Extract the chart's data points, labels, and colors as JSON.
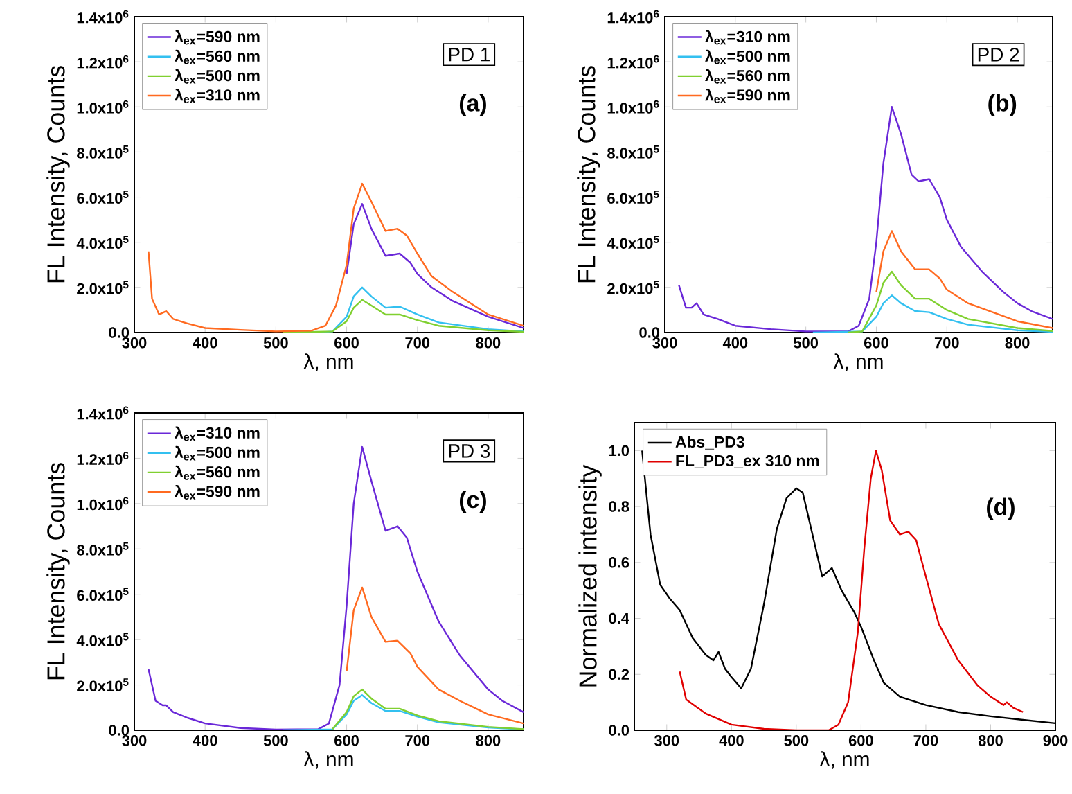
{
  "chart_data": [
    {
      "type": "line",
      "xlabel": "λ, nm",
      "ylabel": "FL Intensity, Counts",
      "xlim": [
        300,
        850
      ],
      "ylim": [
        0,
        1400000
      ],
      "xticks": [
        300,
        400,
        500,
        600,
        700,
        800
      ],
      "yticks": [
        {
          "value": 0,
          "label": "0.0"
        },
        {
          "value": 200000,
          "label": "2.0x10$^{5}$"
        },
        {
          "value": 400000,
          "label": "4.0x10$^{5}$"
        },
        {
          "value": 600000,
          "label": "6.0x10$^{5}$"
        },
        {
          "value": 800000,
          "label": "8.0x10$^{5}$"
        },
        {
          "value": 1000000,
          "label": "1.0x10$^{6}$"
        },
        {
          "value": 1200000,
          "label": "1.2x10$^{6}$"
        },
        {
          "value": 1400000,
          "label": "1.4x10$^{6}$"
        }
      ],
      "legend": "top left",
      "marker": "none",
      "line_style": "solid",
      "annotations": [
        "PD 1",
        "(a)"
      ],
      "series": [
        {
          "name": "λ$_{ex}$=590 nm",
          "color": "#6a28d8",
          "x": [
            600,
            610,
            622,
            635,
            655,
            675,
            690,
            700,
            720,
            750,
            800,
            850
          ],
          "values": [
            260000,
            480000,
            570000,
            460000,
            340000,
            350000,
            310000,
            260000,
            200000,
            140000,
            70000,
            20000
          ]
        },
        {
          "name": "λ$_{ex}$=560 nm",
          "color": "#33c0f0",
          "x": [
            510,
            560,
            580,
            600,
            610,
            622,
            635,
            655,
            675,
            700,
            730,
            800,
            850
          ],
          "values": [
            0,
            0,
            5000,
            70000,
            160000,
            200000,
            160000,
            110000,
            115000,
            80000,
            45000,
            15000,
            5000
          ]
        },
        {
          "name": "λ$_{ex}$=500 nm",
          "color": "#80d030",
          "x": [
            510,
            580,
            600,
            610,
            622,
            635,
            655,
            675,
            700,
            730,
            800,
            850
          ],
          "values": [
            0,
            5000,
            50000,
            110000,
            145000,
            120000,
            80000,
            80000,
            55000,
            30000,
            10000,
            3000
          ]
        },
        {
          "name": "λ$_{ex}$=310 nm",
          "color": "#ff6a20",
          "x": [
            320,
            325,
            335,
            345,
            355,
            375,
            400,
            450,
            500,
            550,
            570,
            585,
            600,
            610,
            622,
            635,
            655,
            672,
            685,
            700,
            720,
            750,
            800,
            850
          ],
          "values": [
            360000,
            150000,
            80000,
            95000,
            60000,
            40000,
            20000,
            12000,
            5000,
            8000,
            30000,
            120000,
            300000,
            550000,
            660000,
            580000,
            450000,
            460000,
            430000,
            350000,
            250000,
            180000,
            80000,
            30000
          ]
        }
      ]
    },
    {
      "type": "line",
      "xlabel": "λ, nm",
      "ylabel": "FL Intensity, Counts",
      "xlim": [
        300,
        850
      ],
      "ylim": [
        0,
        1400000
      ],
      "xticks": [
        300,
        400,
        500,
        600,
        700,
        800
      ],
      "yticks": [
        {
          "value": 0,
          "label": "0.0"
        },
        {
          "value": 200000,
          "label": "2.0x10$^{5}$"
        },
        {
          "value": 400000,
          "label": "4.0x10$^{5}$"
        },
        {
          "value": 600000,
          "label": "6.0x10$^{5}$"
        },
        {
          "value": 800000,
          "label": "8.0x10$^{5}$"
        },
        {
          "value": 1000000,
          "label": "1.0x10$^{6}$"
        },
        {
          "value": 1200000,
          "label": "1.2x10$^{6}$"
        },
        {
          "value": 1400000,
          "label": "1.4x10$^{6}$"
        }
      ],
      "legend": "top left",
      "marker": "none",
      "line_style": "solid",
      "annotations": [
        "PD 2",
        "(b)"
      ],
      "series": [
        {
          "name": "λ$_{ex}$=310 nm",
          "color": "#6a28d8",
          "x": [
            320,
            330,
            338,
            345,
            355,
            375,
            400,
            450,
            500,
            560,
            575,
            590,
            600,
            610,
            622,
            635,
            650,
            660,
            675,
            690,
            700,
            720,
            750,
            780,
            800,
            820,
            850
          ],
          "values": [
            210000,
            110000,
            110000,
            130000,
            80000,
            60000,
            30000,
            15000,
            5000,
            5000,
            30000,
            150000,
            400000,
            750000,
            1000000,
            880000,
            700000,
            670000,
            680000,
            600000,
            500000,
            380000,
            270000,
            180000,
            130000,
            95000,
            60000
          ]
        },
        {
          "name": "λ$_{ex}$=500 nm",
          "color": "#33c0f0",
          "x": [
            510,
            580,
            600,
            610,
            622,
            635,
            655,
            675,
            700,
            730,
            800,
            850
          ],
          "values": [
            0,
            5000,
            70000,
            130000,
            165000,
            130000,
            95000,
            90000,
            60000,
            35000,
            10000,
            3000
          ]
        },
        {
          "name": "λ$_{ex}$=560 nm",
          "color": "#80d030",
          "x": [
            560,
            580,
            600,
            610,
            622,
            635,
            655,
            675,
            700,
            730,
            800,
            850
          ],
          "values": [
            0,
            5000,
            120000,
            220000,
            270000,
            210000,
            150000,
            150000,
            100000,
            60000,
            20000,
            7000
          ]
        },
        {
          "name": "λ$_{ex}$=590 nm",
          "color": "#ff6a20",
          "x": [
            600,
            610,
            622,
            635,
            655,
            675,
            690,
            700,
            730,
            800,
            850
          ],
          "values": [
            180000,
            360000,
            450000,
            360000,
            280000,
            280000,
            240000,
            190000,
            130000,
            50000,
            20000
          ]
        }
      ]
    },
    {
      "type": "line",
      "xlabel": "λ, nm",
      "ylabel": "FL Intensity, Counts",
      "xlim": [
        300,
        850
      ],
      "ylim": [
        0,
        1400000
      ],
      "xticks": [
        300,
        400,
        500,
        600,
        700,
        800
      ],
      "yticks": [
        {
          "value": 0,
          "label": "0.0"
        },
        {
          "value": 200000,
          "label": "2.0x10$^{5}$"
        },
        {
          "value": 400000,
          "label": "4.0x10$^{5}$"
        },
        {
          "value": 600000,
          "label": "6.0x10$^{5}$"
        },
        {
          "value": 800000,
          "label": "8.0x10$^{5}$"
        },
        {
          "value": 1000000,
          "label": "1.0x10$^{6}$"
        },
        {
          "value": 1200000,
          "label": "1.2x10$^{6}$"
        },
        {
          "value": 1400000,
          "label": "1.4x10$^{6}$"
        }
      ],
      "legend": "top left",
      "marker": "none",
      "line_style": "solid",
      "annotations": [
        "PD 3",
        "(c)"
      ],
      "series": [
        {
          "name": "λ$_{ex}$=310 nm",
          "color": "#6a28d8",
          "x": [
            320,
            330,
            340,
            345,
            355,
            375,
            400,
            450,
            500,
            560,
            575,
            590,
            600,
            610,
            622,
            635,
            655,
            672,
            685,
            700,
            730,
            760,
            800,
            820,
            850
          ],
          "values": [
            270000,
            130000,
            110000,
            110000,
            80000,
            55000,
            30000,
            10000,
            3000,
            5000,
            30000,
            200000,
            550000,
            1000000,
            1250000,
            1100000,
            880000,
            900000,
            850000,
            700000,
            480000,
            330000,
            180000,
            130000,
            80000
          ]
        },
        {
          "name": "λ$_{ex}$=500 nm",
          "color": "#33c0f0",
          "x": [
            510,
            580,
            600,
            610,
            622,
            635,
            655,
            675,
            700,
            730,
            800,
            850
          ],
          "values": [
            0,
            4000,
            70000,
            130000,
            155000,
            120000,
            85000,
            85000,
            60000,
            35000,
            12000,
            4000
          ]
        },
        {
          "name": "λ$_{ex}$=560 nm",
          "color": "#80d030",
          "x": [
            580,
            600,
            610,
            622,
            635,
            655,
            675,
            700,
            730,
            800,
            850
          ],
          "values": [
            5000,
            80000,
            150000,
            180000,
            140000,
            95000,
            95000,
            65000,
            40000,
            15000,
            5000
          ]
        },
        {
          "name": "λ$_{ex}$=590 nm",
          "color": "#ff6a20",
          "x": [
            600,
            610,
            622,
            635,
            655,
            672,
            690,
            700,
            730,
            760,
            800,
            850
          ],
          "values": [
            260000,
            530000,
            630000,
            500000,
            390000,
            395000,
            340000,
            280000,
            180000,
            130000,
            70000,
            30000
          ]
        }
      ]
    },
    {
      "type": "line",
      "xlabel": "λ, nm",
      "ylabel": "Normalized intensity",
      "xlim": [
        250,
        900
      ],
      "ylim": [
        0,
        1.1
      ],
      "xticks": [
        300,
        400,
        500,
        600,
        700,
        800,
        900
      ],
      "yticks": [
        {
          "value": 0,
          "label": "0.0"
        },
        {
          "value": 0.2,
          "label": "0.2"
        },
        {
          "value": 0.4,
          "label": "0.4"
        },
        {
          "value": 0.6,
          "label": "0.6"
        },
        {
          "value": 0.8,
          "label": "0.8"
        },
        {
          "value": 1.0,
          "label": "1.0"
        }
      ],
      "legend": "top left",
      "marker": "none",
      "line_style": "solid",
      "annotations": [
        "(d)"
      ],
      "series": [
        {
          "name": "Abs_PD3",
          "color": "#000000",
          "x": [
            262,
            275,
            290,
            305,
            320,
            340,
            360,
            372,
            380,
            390,
            400,
            415,
            430,
            450,
            470,
            485,
            500,
            510,
            520,
            540,
            555,
            570,
            590,
            600,
            620,
            635,
            660,
            700,
            750,
            800,
            850,
            900
          ],
          "values": [
            1.0,
            0.7,
            0.52,
            0.47,
            0.43,
            0.33,
            0.27,
            0.25,
            0.28,
            0.22,
            0.19,
            0.15,
            0.22,
            0.45,
            0.72,
            0.83,
            0.865,
            0.85,
            0.75,
            0.55,
            0.58,
            0.5,
            0.42,
            0.37,
            0.25,
            0.17,
            0.12,
            0.09,
            0.065,
            0.05,
            0.037,
            0.025
          ]
        },
        {
          "name": "FL_PD3_ex 310 nm",
          "color": "#e00000",
          "x": [
            320,
            330,
            345,
            360,
            380,
            400,
            450,
            500,
            550,
            565,
            580,
            595,
            605,
            615,
            623,
            632,
            645,
            660,
            673,
            685,
            700,
            720,
            750,
            780,
            800,
            820,
            825,
            835,
            850
          ],
          "values": [
            0.21,
            0.11,
            0.085,
            0.06,
            0.04,
            0.02,
            0.005,
            0,
            0,
            0.02,
            0.1,
            0.35,
            0.65,
            0.9,
            1.0,
            0.93,
            0.75,
            0.7,
            0.71,
            0.68,
            0.55,
            0.38,
            0.25,
            0.16,
            0.12,
            0.09,
            0.1,
            0.08,
            0.065
          ]
        }
      ]
    }
  ]
}
